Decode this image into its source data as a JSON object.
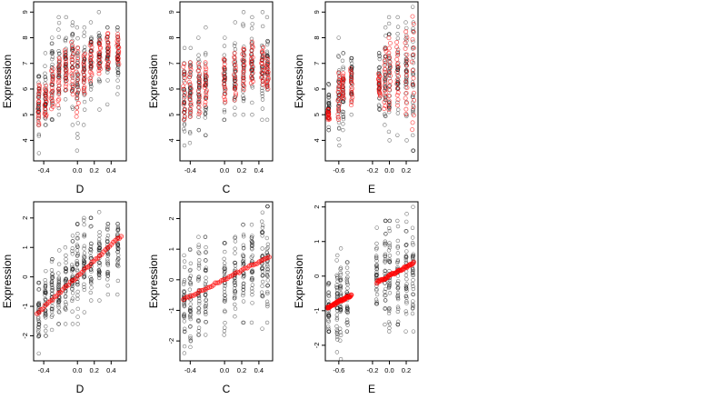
{
  "colors": {
    "observed": "#000000",
    "fitted": "#ff0000",
    "background": "#ffffff"
  },
  "chart_data": [
    {
      "type": "scatter",
      "row": 1,
      "col": 1,
      "xlabel": "D",
      "ylabel": "Expression",
      "xlim": [
        -0.52,
        0.58
      ],
      "ylim": [
        3.2,
        9.4
      ],
      "xticks": [
        {
          "v": -0.4,
          "label": "-0.4"
        },
        {
          "v": 0.0,
          "label": "0.0"
        },
        {
          "v": 0.2,
          "label": "0.2"
        },
        {
          "v": 0.4,
          "label": "0.4"
        }
      ],
      "yticks": [
        4,
        5,
        6,
        7,
        8,
        9
      ],
      "columns": [
        {
          "x": -0.46,
          "obs_center": 5.4,
          "obs_spread": 0.55,
          "obs_min": 3.5,
          "obs_max": 6.5,
          "fit_low": 4.6,
          "fit_high": 6.2
        },
        {
          "x": -0.38,
          "obs_center": 5.8,
          "obs_spread": 0.6,
          "obs_min": 4.6,
          "obs_max": 7.4,
          "fit_low": 4.9,
          "fit_high": 6.1
        },
        {
          "x": -0.3,
          "obs_center": 6.3,
          "obs_spread": 0.7,
          "obs_min": 4.8,
          "obs_max": 8.0,
          "fit_low": 5.2,
          "fit_high": 6.8
        },
        {
          "x": -0.22,
          "obs_center": 6.6,
          "obs_spread": 0.7,
          "obs_min": 5.0,
          "obs_max": 8.8,
          "fit_low": 5.4,
          "fit_high": 7.2
        },
        {
          "x": -0.14,
          "obs_center": 6.9,
          "obs_spread": 0.6,
          "obs_min": 5.6,
          "obs_max": 8.8,
          "fit_low": 6.0,
          "fit_high": 7.5
        },
        {
          "x": -0.06,
          "obs_center": 6.8,
          "obs_spread": 0.75,
          "obs_min": 4.6,
          "obs_max": 8.6,
          "fit_low": 5.8,
          "fit_high": 7.8
        },
        {
          "x": 0.0,
          "obs_center": 6.3,
          "obs_spread": 0.8,
          "obs_min": 3.6,
          "obs_max": 8.4,
          "fit_low": 4.9,
          "fit_high": 7.6
        },
        {
          "x": 0.08,
          "obs_center": 6.8,
          "obs_spread": 0.7,
          "obs_min": 4.6,
          "obs_max": 8.4,
          "fit_low": 5.8,
          "fit_high": 7.4
        },
        {
          "x": 0.16,
          "obs_center": 7.1,
          "obs_spread": 0.6,
          "obs_min": 5.6,
          "obs_max": 8.6,
          "fit_low": 6.3,
          "fit_high": 7.8
        },
        {
          "x": 0.26,
          "obs_center": 7.3,
          "obs_spread": 0.6,
          "obs_min": 5.2,
          "obs_max": 9.0,
          "fit_low": 6.6,
          "fit_high": 7.9
        },
        {
          "x": 0.36,
          "obs_center": 7.2,
          "obs_spread": 0.55,
          "obs_min": 5.4,
          "obs_max": 8.4,
          "fit_low": 6.8,
          "fit_high": 8.2
        },
        {
          "x": 0.48,
          "obs_center": 7.4,
          "obs_spread": 0.5,
          "obs_min": 5.8,
          "obs_max": 8.4,
          "fit_low": 7.0,
          "fit_high": 8.1
        }
      ]
    },
    {
      "type": "scatter",
      "row": 1,
      "col": 2,
      "xlabel": "C",
      "ylabel": "Expression",
      "xlim": [
        -0.52,
        0.56
      ],
      "ylim": [
        3.2,
        9.4
      ],
      "xticks": [
        {
          "v": -0.4,
          "label": "-0.4"
        },
        {
          "v": 0.0,
          "label": "0.0"
        },
        {
          "v": 0.2,
          "label": "0.2"
        },
        {
          "v": 0.4,
          "label": "0.4"
        }
      ],
      "yticks": [
        4,
        5,
        6,
        7,
        8,
        9
      ],
      "columns": [
        {
          "x": -0.47,
          "obs_center": 5.8,
          "obs_spread": 0.8,
          "obs_min": 3.8,
          "obs_max": 7.6,
          "fit_low": 4.8,
          "fit_high": 7.0
        },
        {
          "x": -0.4,
          "obs_center": 5.8,
          "obs_spread": 0.8,
          "obs_min": 3.9,
          "obs_max": 7.6,
          "fit_low": 4.9,
          "fit_high": 7.0
        },
        {
          "x": -0.3,
          "obs_center": 6.0,
          "obs_spread": 0.8,
          "obs_min": 4.4,
          "obs_max": 8.0,
          "fit_low": 5.0,
          "fit_high": 7.0
        },
        {
          "x": -0.22,
          "obs_center": 6.2,
          "obs_spread": 0.8,
          "obs_min": 4.2,
          "obs_max": 8.4,
          "fit_low": 5.4,
          "fit_high": 7.0
        },
        {
          "x": 0.0,
          "obs_center": 6.3,
          "obs_spread": 0.7,
          "obs_min": 4.8,
          "obs_max": 8.0,
          "fit_low": 5.5,
          "fit_high": 7.2
        },
        {
          "x": 0.12,
          "obs_center": 6.6,
          "obs_spread": 0.7,
          "obs_min": 5.0,
          "obs_max": 8.6,
          "fit_low": 5.6,
          "fit_high": 7.4
        },
        {
          "x": 0.22,
          "obs_center": 6.8,
          "obs_spread": 0.7,
          "obs_min": 5.0,
          "obs_max": 9.0,
          "fit_low": 6.0,
          "fit_high": 7.6
        },
        {
          "x": 0.32,
          "obs_center": 6.9,
          "obs_spread": 0.7,
          "obs_min": 5.0,
          "obs_max": 8.8,
          "fit_low": 6.2,
          "fit_high": 7.8
        },
        {
          "x": 0.44,
          "obs_center": 6.9,
          "obs_spread": 0.75,
          "obs_min": 4.8,
          "obs_max": 9.0,
          "fit_low": 6.2,
          "fit_high": 7.6
        },
        {
          "x": 0.5,
          "obs_center": 6.8,
          "obs_spread": 0.7,
          "obs_min": 4.8,
          "obs_max": 8.8,
          "fit_low": 6.0,
          "fit_high": 7.2
        }
      ]
    },
    {
      "type": "scatter",
      "row": 1,
      "col": 3,
      "xlabel": "E",
      "ylabel": "Expression",
      "xlim": [
        -0.76,
        0.34
      ],
      "ylim": [
        3.2,
        9.4
      ],
      "xticks": [
        {
          "v": -0.6,
          "label": "-0.6"
        },
        {
          "v": -0.2,
          "label": "-0.2"
        },
        {
          "v": 0.0,
          "label": "0.0"
        },
        {
          "v": 0.2,
          "label": "0.2"
        }
      ],
      "yticks": [
        4,
        5,
        6,
        7,
        8,
        9
      ],
      "columns": [
        {
          "x": -0.72,
          "obs_center": 5.4,
          "obs_spread": 0.6,
          "obs_min": 4.4,
          "obs_max": 6.2,
          "fit_low": 4.8,
          "fit_high": 5.2
        },
        {
          "x": -0.6,
          "obs_center": 5.8,
          "obs_spread": 0.8,
          "obs_min": 3.8,
          "obs_max": 8.0,
          "fit_low": 4.8,
          "fit_high": 6.6
        },
        {
          "x": -0.55,
          "obs_center": 6.0,
          "obs_spread": 0.7,
          "obs_min": 4.4,
          "obs_max": 7.4,
          "fit_low": 5.6,
          "fit_high": 6.6
        },
        {
          "x": -0.45,
          "obs_center": 6.2,
          "obs_spread": 0.6,
          "obs_min": 5.0,
          "obs_max": 7.2,
          "fit_low": 5.4,
          "fit_high": 6.8
        },
        {
          "x": -0.12,
          "obs_center": 6.3,
          "obs_spread": 0.6,
          "obs_min": 5.2,
          "obs_max": 7.4,
          "fit_low": 5.7,
          "fit_high": 6.6
        },
        {
          "x": -0.05,
          "obs_center": 6.5,
          "obs_spread": 0.8,
          "obs_min": 4.6,
          "obs_max": 8.4,
          "fit_low": 5.2,
          "fit_high": 7.6
        },
        {
          "x": 0.0,
          "obs_center": 6.6,
          "obs_spread": 0.9,
          "obs_min": 4.0,
          "obs_max": 8.8,
          "fit_low": 5.2,
          "fit_high": 8.0
        },
        {
          "x": 0.1,
          "obs_center": 6.6,
          "obs_spread": 0.8,
          "obs_min": 4.2,
          "obs_max": 8.8,
          "fit_low": 5.4,
          "fit_high": 7.8
        },
        {
          "x": 0.2,
          "obs_center": 6.5,
          "obs_spread": 0.9,
          "obs_min": 4.0,
          "obs_max": 8.6,
          "fit_low": 5.0,
          "fit_high": 8.2
        },
        {
          "x": 0.28,
          "obs_center": 6.4,
          "obs_spread": 1.1,
          "obs_min": 3.6,
          "obs_max": 9.2,
          "fit_low": 4.4,
          "fit_high": 8.8
        }
      ]
    },
    {
      "type": "scatter",
      "row": 2,
      "col": 1,
      "xlabel": "D",
      "ylabel": "Expression",
      "xlim": [
        -0.52,
        0.58
      ],
      "ylim": [
        -2.85,
        2.55
      ],
      "xticks": [
        {
          "v": -0.4,
          "label": "-0.4"
        },
        {
          "v": 0.0,
          "label": "0.0"
        },
        {
          "v": 0.2,
          "label": "0.2"
        },
        {
          "v": 0.4,
          "label": "0.4"
        }
      ],
      "yticks": [
        -2,
        -1,
        0,
        1,
        2
      ],
      "fit_line": [
        [
          -0.48,
          -1.25
        ],
        [
          0.52,
          1.4
        ]
      ],
      "columns": [
        {
          "x": -0.46,
          "obs_center": -1.3,
          "obs_spread": 0.6,
          "obs_min": -2.6,
          "obs_max": -0.2
        },
        {
          "x": -0.38,
          "obs_center": -1.0,
          "obs_spread": 0.55,
          "obs_min": -2.0,
          "obs_max": 0.2
        },
        {
          "x": -0.3,
          "obs_center": -0.6,
          "obs_spread": 0.55,
          "obs_min": -1.8,
          "obs_max": 0.6
        },
        {
          "x": -0.22,
          "obs_center": -0.4,
          "obs_spread": 0.55,
          "obs_min": -1.6,
          "obs_max": 0.9
        },
        {
          "x": -0.14,
          "obs_center": -0.2,
          "obs_spread": 0.55,
          "obs_min": -1.6,
          "obs_max": 1.0
        },
        {
          "x": -0.06,
          "obs_center": 0.0,
          "obs_spread": 0.6,
          "obs_min": -1.6,
          "obs_max": 1.4
        },
        {
          "x": 0.0,
          "obs_center": 0.2,
          "obs_spread": 0.65,
          "obs_min": -1.6,
          "obs_max": 1.8
        },
        {
          "x": 0.08,
          "obs_center": 0.4,
          "obs_spread": 0.6,
          "obs_min": -1.2,
          "obs_max": 2.0
        },
        {
          "x": 0.16,
          "obs_center": 0.6,
          "obs_spread": 0.6,
          "obs_min": -0.8,
          "obs_max": 2.0
        },
        {
          "x": 0.26,
          "obs_center": 0.8,
          "obs_spread": 0.6,
          "obs_min": -0.8,
          "obs_max": 2.2
        },
        {
          "x": 0.36,
          "obs_center": 0.9,
          "obs_spread": 0.55,
          "obs_min": -0.6,
          "obs_max": 1.8
        },
        {
          "x": 0.48,
          "obs_center": 1.0,
          "obs_spread": 0.5,
          "obs_min": -0.6,
          "obs_max": 1.8
        }
      ]
    },
    {
      "type": "scatter",
      "row": 2,
      "col": 2,
      "xlabel": "C",
      "ylabel": "Expression",
      "xlim": [
        -0.52,
        0.56
      ],
      "ylim": [
        -2.65,
        2.55
      ],
      "xticks": [
        {
          "v": -0.4,
          "label": "-0.4"
        },
        {
          "v": 0.0,
          "label": "0.0"
        },
        {
          "v": 0.2,
          "label": "0.2"
        },
        {
          "v": 0.4,
          "label": "0.4"
        }
      ],
      "yticks": [
        -2,
        -1,
        0,
        1,
        2
      ],
      "fit_line": [
        [
          -0.48,
          -0.65
        ],
        [
          0.52,
          0.75
        ]
      ],
      "columns": [
        {
          "x": -0.47,
          "obs_center": -0.6,
          "obs_spread": 0.7,
          "obs_min": -2.4,
          "obs_max": 0.8
        },
        {
          "x": -0.4,
          "obs_center": -0.5,
          "obs_spread": 0.7,
          "obs_min": -2.2,
          "obs_max": 1.0
        },
        {
          "x": -0.3,
          "obs_center": -0.3,
          "obs_spread": 0.7,
          "obs_min": -1.8,
          "obs_max": 1.4
        },
        {
          "x": -0.22,
          "obs_center": -0.3,
          "obs_spread": 0.7,
          "obs_min": -1.8,
          "obs_max": 1.4
        },
        {
          "x": 0.0,
          "obs_center": -0.1,
          "obs_spread": 0.7,
          "obs_min": -1.8,
          "obs_max": 1.2
        },
        {
          "x": 0.12,
          "obs_center": 0.2,
          "obs_spread": 0.6,
          "obs_min": -1.2,
          "obs_max": 1.4
        },
        {
          "x": 0.22,
          "obs_center": 0.3,
          "obs_spread": 0.65,
          "obs_min": -1.4,
          "obs_max": 1.8
        },
        {
          "x": 0.32,
          "obs_center": 0.4,
          "obs_spread": 0.65,
          "obs_min": -1.4,
          "obs_max": 1.8
        },
        {
          "x": 0.44,
          "obs_center": 0.5,
          "obs_spread": 0.7,
          "obs_min": -1.6,
          "obs_max": 2.2
        },
        {
          "x": 0.5,
          "obs_center": 0.5,
          "obs_spread": 0.7,
          "obs_min": -1.4,
          "obs_max": 2.4
        }
      ]
    },
    {
      "type": "scatter",
      "row": 2,
      "col": 3,
      "xlabel": "E",
      "ylabel": "Expression",
      "xlim": [
        -0.76,
        0.34
      ],
      "ylim": [
        -2.45,
        2.15
      ],
      "xticks": [
        {
          "v": -0.6,
          "label": "-0.6"
        },
        {
          "v": -0.2,
          "label": "-0.2"
        },
        {
          "v": 0.0,
          "label": "0.0"
        },
        {
          "v": 0.2,
          "label": "0.2"
        }
      ],
      "yticks": [
        -2,
        -1,
        0,
        1,
        2
      ],
      "fit_segments": [
        [
          [
            -0.74,
            -0.92
          ],
          [
            -0.45,
            -0.55
          ]
        ],
        [
          [
            -0.15,
            -0.18
          ],
          [
            0.29,
            0.38
          ]
        ]
      ],
      "columns": [
        {
          "x": -0.72,
          "obs_center": -0.9,
          "obs_spread": 0.5,
          "obs_min": -1.6,
          "obs_max": -0.2
        },
        {
          "x": -0.62,
          "obs_center": -0.8,
          "obs_spread": 0.6,
          "obs_min": -2.2,
          "obs_max": 0.6
        },
        {
          "x": -0.58,
          "obs_center": -0.7,
          "obs_spread": 0.6,
          "obs_min": -2.4,
          "obs_max": 0.8
        },
        {
          "x": -0.5,
          "obs_center": -0.6,
          "obs_spread": 0.5,
          "obs_min": -1.6,
          "obs_max": 0.4
        },
        {
          "x": -0.15,
          "obs_center": 0.0,
          "obs_spread": 0.5,
          "obs_min": -0.8,
          "obs_max": 1.4
        },
        {
          "x": -0.05,
          "obs_center": 0.0,
          "obs_spread": 0.6,
          "obs_min": -1.4,
          "obs_max": 1.6
        },
        {
          "x": 0.0,
          "obs_center": 0.0,
          "obs_spread": 0.7,
          "obs_min": -1.6,
          "obs_max": 1.6
        },
        {
          "x": 0.1,
          "obs_center": 0.1,
          "obs_spread": 0.6,
          "obs_min": -1.4,
          "obs_max": 1.6
        },
        {
          "x": 0.2,
          "obs_center": 0.2,
          "obs_spread": 0.7,
          "obs_min": -1.6,
          "obs_max": 1.8
        },
        {
          "x": 0.28,
          "obs_center": 0.3,
          "obs_spread": 0.8,
          "obs_min": -1.6,
          "obs_max": 2.0
        }
      ]
    }
  ]
}
